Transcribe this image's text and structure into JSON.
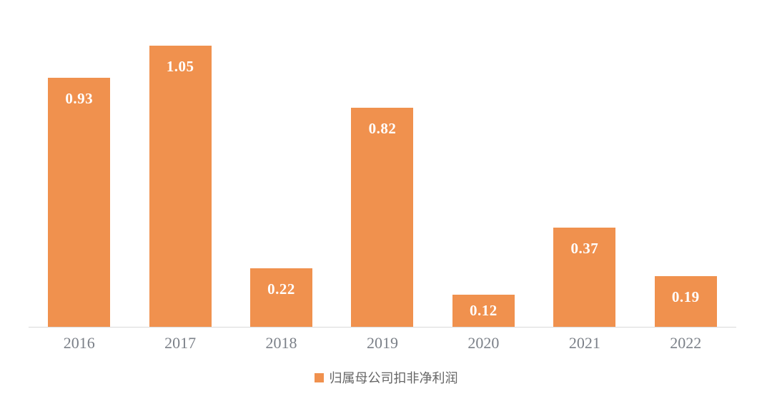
{
  "chart_data": {
    "type": "bar",
    "title": "",
    "categories": [
      "2016",
      "2017",
      "2018",
      "2019",
      "2020",
      "2021",
      "2022"
    ],
    "series": [
      {
        "name": "归属母公司扣非净利润",
        "values": [
          0.93,
          1.05,
          0.22,
          0.82,
          0.12,
          0.37,
          0.19
        ]
      }
    ],
    "value_labels": [
      "0.93",
      "1.05",
      "0.22",
      "0.82",
      "0.12",
      "0.37",
      "0.19"
    ],
    "xlabel": "",
    "ylabel": "",
    "ylim": [
      0,
      1.2
    ],
    "grid": false,
    "legend_position": "bottom",
    "colors": {
      "bar": "#f0914e",
      "value_label": "#ffffff",
      "axis_line": "#d9d9d9",
      "tick_label": "#7b8088",
      "legend_text": "#666666"
    }
  }
}
